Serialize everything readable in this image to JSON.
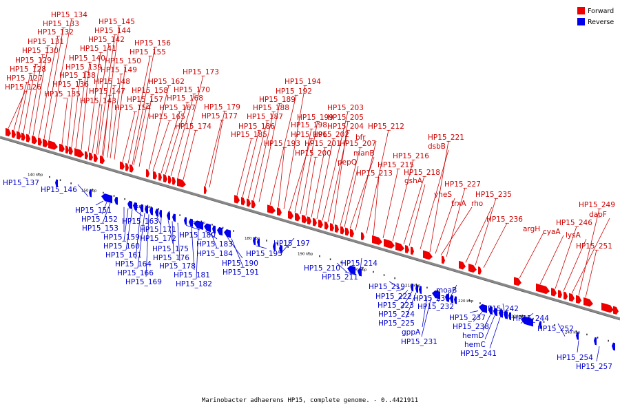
{
  "caption": "Marinobacter adhaerens HP15, complete genome. - 0..4421911",
  "legend": [
    {
      "label": "Forward",
      "color": "#ee0000"
    },
    {
      "label": "Reverse",
      "color": "#0000ee"
    }
  ],
  "colors": {
    "forward": "#ee0000",
    "reverse": "#0000ee",
    "forward_line": "#cc0000",
    "reverse_line": "#0000cc"
  },
  "ticks": [
    "140 kbp",
    "150 kbp",
    "160 kbp",
    "170 kbp",
    "180 kbp",
    "190 kbp",
    "200 kbp",
    "210 kbp",
    "220 kbp",
    "230 kbp",
    "240 kbp"
  ],
  "forward_genes": [
    "HP15_126",
    "HP15_127",
    "HP15_128",
    "HP15_129",
    "HP15_130",
    "HP15_131",
    "HP15_132",
    "HP15_133",
    "HP15_134",
    "HP15_135",
    "HP15_136",
    "HP15_138",
    "HP15_139",
    "HP15_140",
    "HP15_141",
    "HP15_142",
    "HP15_143",
    "HP15_144",
    "HP15_145",
    "HP15_147",
    "HP15_148",
    "HP15_149",
    "HP15_150",
    "HP15_154",
    "HP15_155",
    "HP15_156",
    "HP15_157",
    "HP15_158",
    "HP15_162",
    "HP15_165",
    "HP15_167",
    "HP15_168",
    "HP15_170",
    "HP15_173",
    "HP15_174",
    "HP15_177",
    "HP15_179",
    "HP15_185",
    "HP15_186",
    "HP15_187",
    "HP15_188",
    "HP15_189",
    "HP15_192",
    "HP15_193",
    "HP15_194",
    "HP15_196",
    "HP15_198",
    "HP15_199",
    "HP15_200",
    "HP15_201",
    "HP15_202",
    "HP15_203",
    "HP15_204",
    "HP15_205",
    "HP15_207",
    "pepQ",
    "manB",
    "bfr",
    "HP15_212",
    "HP15_213",
    "HP15_215",
    "HP15_216",
    "HP15_218",
    "gshA",
    "dsbB",
    "HP15_221",
    "yheS",
    "trxA",
    "HP15_227",
    "rho",
    "HP15_235",
    "HP15_236",
    "argH",
    "cyaA",
    "HP15_246",
    "lysA",
    "dapF",
    "HP15_249",
    "HP15_251"
  ],
  "reverse_genes": [
    "HP15_137",
    "HP15_146",
    "HP15_151",
    "HP15_152",
    "HP15_153",
    "HP15_159",
    "HP15_160",
    "HP15_161",
    "HP15_163",
    "HP15_164",
    "HP15_166",
    "HP15_169",
    "HP15_171",
    "HP15_172",
    "HP15_175",
    "HP15_176",
    "HP15_178",
    "HP15_180",
    "HP15_181",
    "HP15_182",
    "HP15_183",
    "HP15_184",
    "HP15_190",
    "HP15_191",
    "HP15_195",
    "HP15_197",
    "HP15_210",
    "HP15_211",
    "HP15_214",
    "HP15_219",
    "HP15_222",
    "HP15_223",
    "HP15_224",
    "HP15_225",
    "gppA",
    "HP15_231",
    "HP15_230",
    "HP15_232",
    "moaB",
    "HP15_237",
    "HP15_238",
    "hemD",
    "hemC",
    "HP15_241",
    "HP15_242",
    "HP15_244",
    "HP15_252",
    "HP15_254",
    "HP15_257"
  ]
}
